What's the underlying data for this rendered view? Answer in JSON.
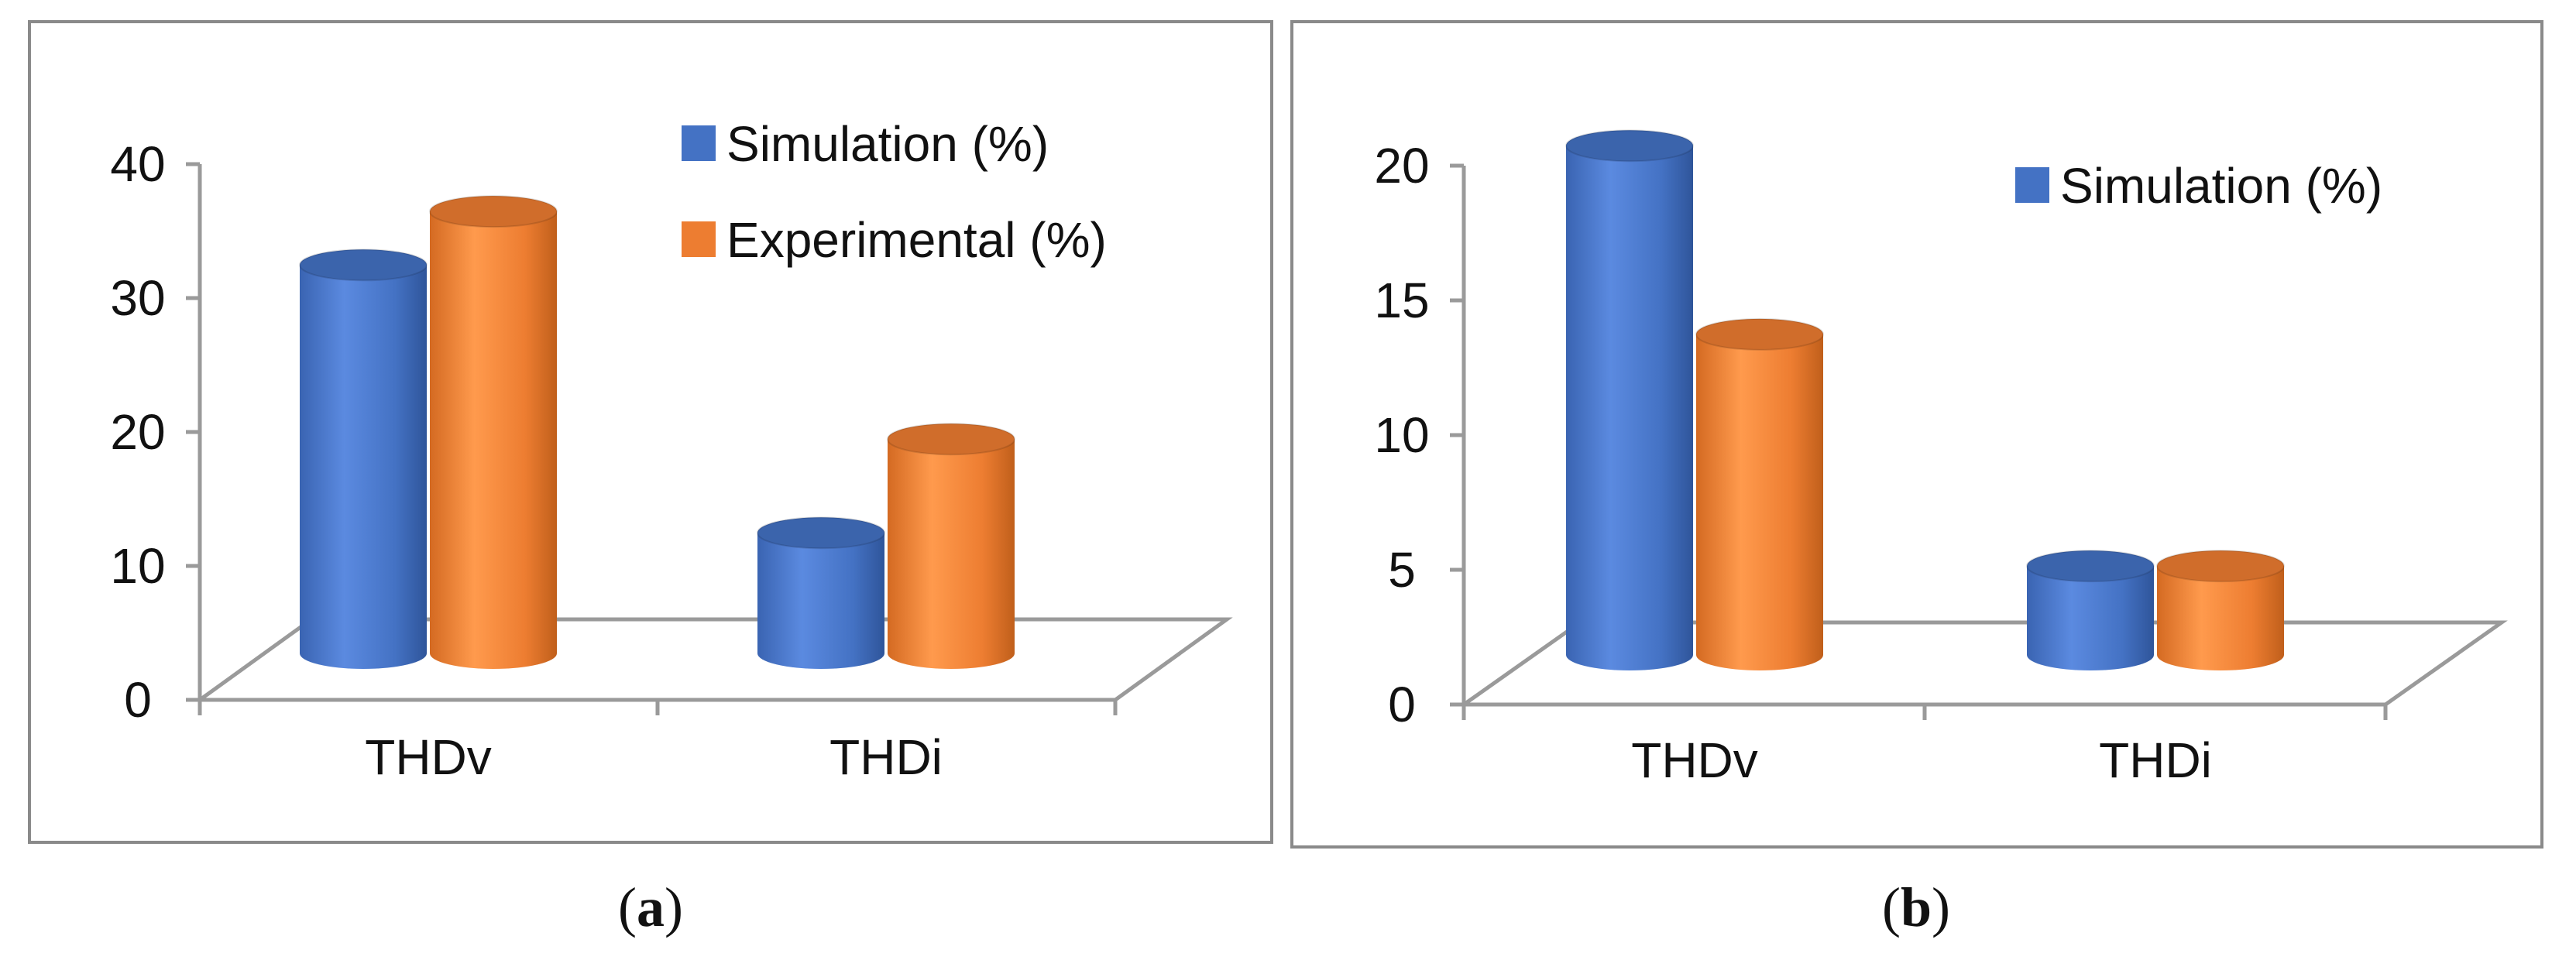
{
  "chart_data": [
    {
      "type": "bar",
      "style": "3d-cylinder",
      "caption": "a",
      "categories": [
        "THDv",
        "THDi"
      ],
      "series": [
        {
          "name": "Simulation (%)",
          "values": [
            29,
            9
          ],
          "color": "#4472C4"
        },
        {
          "name": "Experimental (%)",
          "values": [
            33,
            16
          ],
          "color": "#ED7D31"
        }
      ],
      "legend_entries": [
        "Simulation (%)",
        "Experimental (%)"
      ],
      "yticks": [
        "0",
        "10",
        "20",
        "30",
        "40"
      ],
      "ylim": [
        0,
        40
      ],
      "title": "",
      "xlabel": "",
      "ylabel": "",
      "legend_position": "top-right",
      "grid": false
    },
    {
      "type": "bar",
      "style": "3d-cylinder",
      "caption": "b",
      "categories": [
        "THDv",
        "THDi"
      ],
      "series": [
        {
          "name": "Simulation (%)",
          "values": [
            18.9,
            3.3
          ],
          "color": "#4472C4"
        },
        {
          "name": "",
          "values": [
            11.9,
            3.3
          ],
          "color": "#ED7D31"
        }
      ],
      "legend_entries": [
        "Simulation (%)"
      ],
      "yticks": [
        "0",
        "5",
        "10",
        "15",
        "20"
      ],
      "ylim": [
        0,
        20
      ],
      "title": "",
      "xlabel": "",
      "ylabel": "",
      "legend_position": "top-right",
      "grid": false
    }
  ]
}
